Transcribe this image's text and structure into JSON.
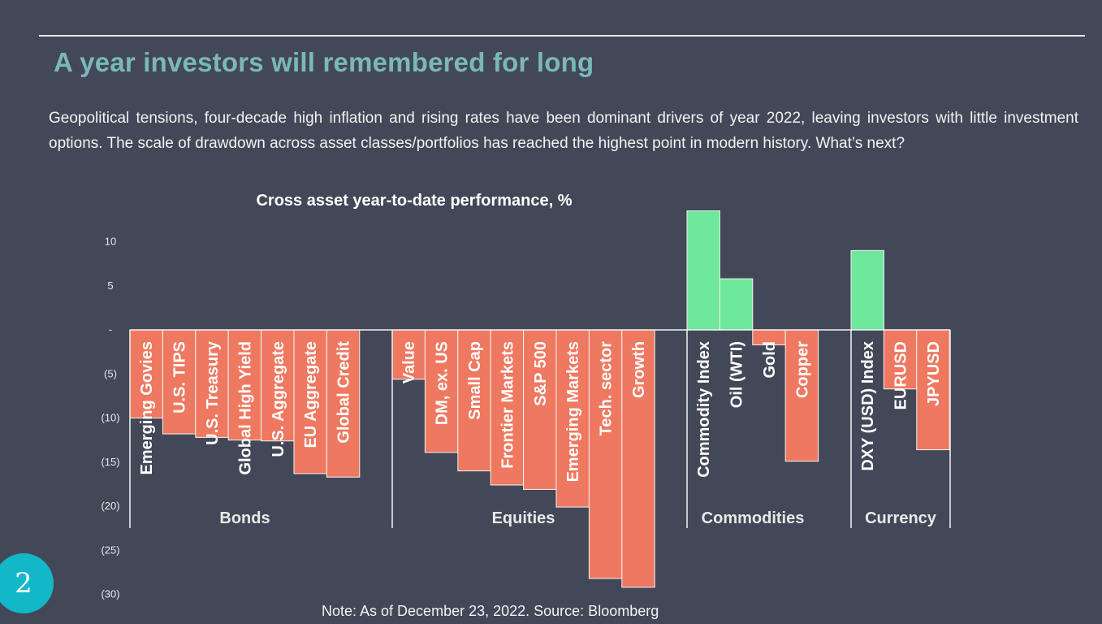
{
  "slide": {
    "title": "A year investors will remembered for long",
    "intro": "Geopolitical tensions, four-decade high inflation and rising rates have been dominant drivers of year 2022, leaving investors with little investment options.  The scale of drawdown across asset classes/portfolios has reached the highest point in modern history.  What’s next?",
    "note": "Note: As of December 23, 2022. Source: Bloomberg",
    "page_number": "2"
  },
  "colors": {
    "background": "#434858",
    "title": "#7ab8b9",
    "positive": "#6ee89a",
    "negative": "#ef7860",
    "badge": "#12b8c8"
  },
  "chart_data": {
    "type": "bar",
    "title": "Cross asset year-to-date performance, %",
    "xlabel": "",
    "ylabel": "",
    "ylim": [
      -30,
      13.5
    ],
    "yticks": [
      {
        "value": 10,
        "label": "10"
      },
      {
        "value": 5,
        "label": "5"
      },
      {
        "value": 0,
        "label": "-"
      },
      {
        "value": -5,
        "label": "(5)"
      },
      {
        "value": -10,
        "label": "(10)"
      },
      {
        "value": -15,
        "label": "(15)"
      },
      {
        "value": -20,
        "label": "(20)"
      },
      {
        "value": -25,
        "label": "(25)"
      },
      {
        "value": -30,
        "label": "(30)"
      }
    ],
    "grid": false,
    "groups": [
      {
        "name": "Bonds",
        "categories": [
          "Emerging Govies",
          "U.S. TIPS",
          "U.S. Treasury",
          "Global High Yield",
          "U.S. Aggregate",
          "EU Aggregate",
          "Global Credit"
        ],
        "values": [
          -10.0,
          -11.8,
          -12.2,
          -12.5,
          -12.6,
          -16.3,
          -16.7
        ]
      },
      {
        "name": "Equities",
        "categories": [
          "Value",
          "DM, ex. US",
          "Small Cap",
          "Frontier Markets",
          "S&P 500",
          "Emerging Markets",
          "Tech. sector",
          "Growth"
        ],
        "values": [
          -5.6,
          -13.9,
          -16.0,
          -17.6,
          -18.1,
          -20.1,
          -28.2,
          -29.2
        ]
      },
      {
        "name": "Commodities",
        "categories": [
          "Commodity Index",
          "Oil (WTI)",
          "Gold",
          "Copper"
        ],
        "values": [
          13.5,
          5.8,
          -1.7,
          -14.9
        ]
      },
      {
        "name": "Currency",
        "categories": [
          "DXY (USD) Index",
          "EURUSD",
          "JPYUSD"
        ],
        "values": [
          9.0,
          -6.7,
          -13.6
        ]
      }
    ]
  }
}
